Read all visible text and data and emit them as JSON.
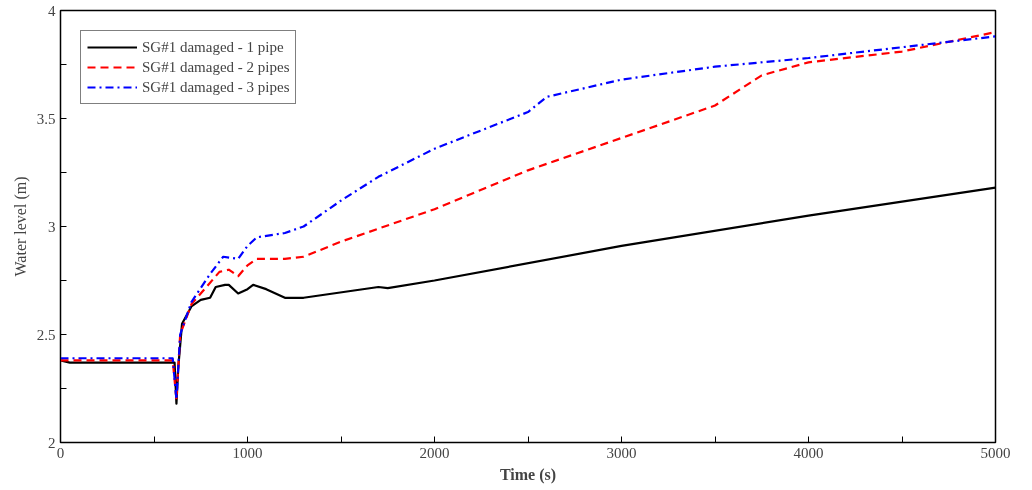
{
  "chart_data": {
    "type": "line",
    "xlabel": "Time (s)",
    "ylabel": "Water level (m)",
    "xlim": [
      0,
      5000
    ],
    "ylim": [
      2,
      4
    ],
    "xticks": [
      0,
      {
        "value": 500,
        "label": null
      },
      1000,
      {
        "value": 1500,
        "label": null
      },
      2000,
      {
        "value": 2500,
        "label": null
      },
      3000,
      {
        "value": 3500,
        "label": null
      },
      4000,
      {
        "value": 4500,
        "label": null
      },
      5000
    ],
    "yticks": [
      2,
      {
        "value": 2.25,
        "label": null
      },
      2.5,
      {
        "value": 2.75,
        "label": null
      },
      3,
      {
        "value": 3.25,
        "label": null
      },
      3.5,
      {
        "value": 3.75,
        "label": null
      },
      4
    ],
    "grid": false,
    "legend": "top left",
    "marker": "none",
    "series": [
      {
        "name": "SG#1 damaged - 1 pipe",
        "color": "#000000",
        "line_style": "solid",
        "x": [
          0,
          50,
          600,
          610,
          620,
          630,
          650,
          700,
          750,
          800,
          830,
          880,
          900,
          950,
          1000,
          1030,
          1100,
          1200,
          1300,
          1700,
          1750,
          2000,
          3000,
          4000,
          5000
        ],
        "values": [
          2.38,
          2.37,
          2.37,
          2.37,
          2.18,
          2.35,
          2.55,
          2.63,
          2.66,
          2.67,
          2.72,
          2.73,
          2.73,
          2.69,
          2.71,
          2.73,
          2.71,
          2.67,
          2.67,
          2.72,
          2.715,
          2.75,
          2.91,
          3.05,
          3.18
        ]
      },
      {
        "name": "SG#1 damaged - 2 pipes",
        "color": "#ff0000",
        "line_style": "dashed",
        "x": [
          0,
          600,
          620,
          640,
          700,
          800,
          850,
          900,
          950,
          1000,
          1050,
          1200,
          1300,
          1500,
          1700,
          2000,
          2500,
          3000,
          3500,
          3750,
          4000,
          4500,
          5000
        ],
        "values": [
          2.38,
          2.38,
          2.2,
          2.5,
          2.64,
          2.74,
          2.79,
          2.8,
          2.77,
          2.82,
          2.85,
          2.85,
          2.86,
          2.93,
          2.99,
          3.08,
          3.26,
          3.41,
          3.56,
          3.7,
          3.76,
          3.81,
          3.9
        ]
      },
      {
        "name": "SG#1 damaged - 3 pipes",
        "color": "#0000ff",
        "line_style": "dashdot",
        "x": [
          0,
          600,
          620,
          640,
          700,
          800,
          870,
          950,
          1000,
          1050,
          1200,
          1300,
          1500,
          1700,
          2000,
          2500,
          2600,
          3000,
          3500,
          4000,
          4500,
          5000
        ],
        "values": [
          2.39,
          2.39,
          2.2,
          2.5,
          2.65,
          2.78,
          2.86,
          2.85,
          2.91,
          2.95,
          2.97,
          3.0,
          3.12,
          3.23,
          3.36,
          3.53,
          3.6,
          3.68,
          3.74,
          3.78,
          3.83,
          3.88
        ]
      }
    ]
  }
}
